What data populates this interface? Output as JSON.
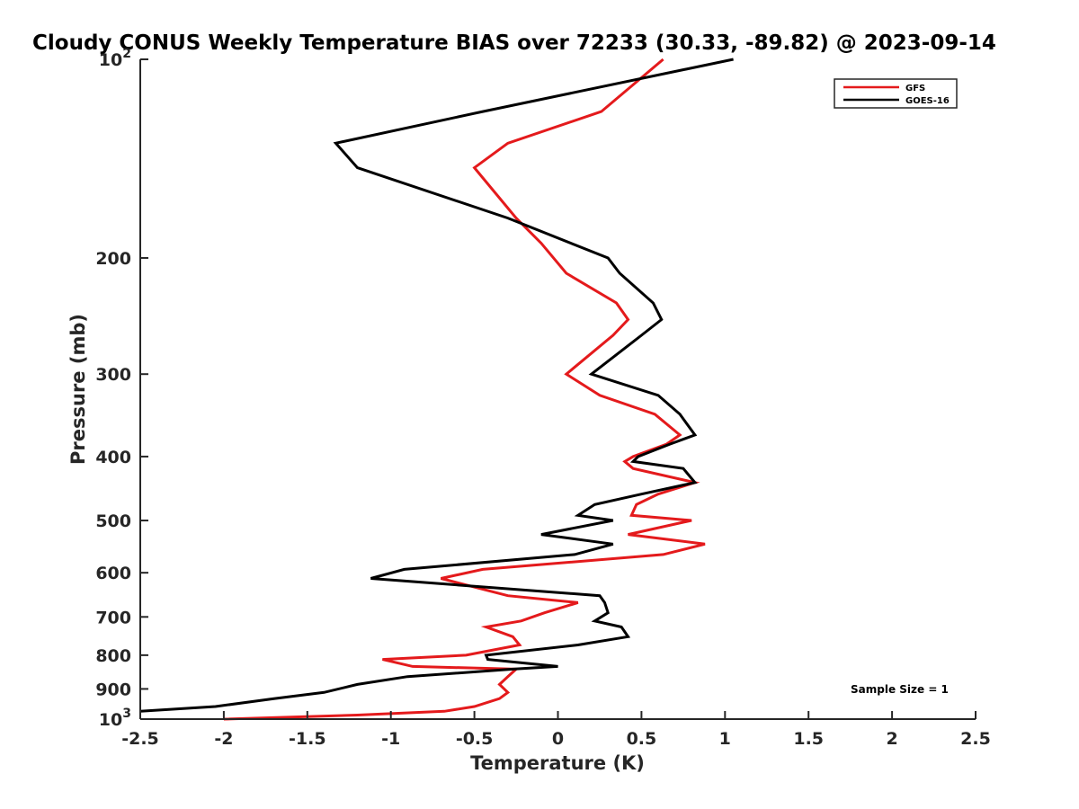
{
  "chart_data": {
    "type": "line",
    "title": "Cloudy CONUS Weekly Temperature BIAS over 72233 (30.33, -89.82) @ 2023-09-14",
    "xlabel": "Temperature (K)",
    "ylabel": "Pressure (mb)",
    "xlim": [
      -2.5,
      2.5
    ],
    "ylim": [
      100,
      1000
    ],
    "yscale": "log",
    "y_reversed": true,
    "grid": false,
    "legend_position": "top-right",
    "annotation": "Sample Size = 1",
    "x_ticks": [
      "-2.5",
      "-2",
      "-1.5",
      "-1",
      "-0.5",
      "0",
      "0.5",
      "1",
      "1.5",
      "2",
      "2.5"
    ],
    "x_tick_values": [
      -2.5,
      -2,
      -1.5,
      -1,
      -0.5,
      0,
      0.5,
      1,
      1.5,
      2,
      2.5
    ],
    "y_ticks": [
      {
        "value": 100,
        "base": "10",
        "exp": "2"
      },
      {
        "value": 200,
        "label": "200"
      },
      {
        "value": 300,
        "label": "300"
      },
      {
        "value": 400,
        "label": "400"
      },
      {
        "value": 500,
        "label": "500"
      },
      {
        "value": 600,
        "label": "600"
      },
      {
        "value": 700,
        "label": "700"
      },
      {
        "value": 800,
        "label": "800"
      },
      {
        "value": 900,
        "label": "900"
      },
      {
        "value": 1000,
        "base": "10",
        "exp": "3"
      }
    ],
    "series": [
      {
        "name": "GFS",
        "color": "#e41a1c",
        "points": [
          [
            0.63,
            100
          ],
          [
            0.26,
            120
          ],
          [
            -0.3,
            134
          ],
          [
            -0.5,
            146
          ],
          [
            -0.25,
            174
          ],
          [
            -0.1,
            190
          ],
          [
            0.05,
            211
          ],
          [
            0.35,
            234
          ],
          [
            0.42,
            248
          ],
          [
            0.33,
            262
          ],
          [
            0.05,
            300
          ],
          [
            0.25,
            323
          ],
          [
            0.58,
            345
          ],
          [
            0.73,
            371
          ],
          [
            0.65,
            383
          ],
          [
            0.45,
            400
          ],
          [
            0.4,
            407
          ],
          [
            0.45,
            417
          ],
          [
            0.82,
            438
          ],
          [
            0.6,
            456
          ],
          [
            0.47,
            473
          ],
          [
            0.44,
            491
          ],
          [
            0.8,
            500
          ],
          [
            0.42,
            525
          ],
          [
            0.88,
            543
          ],
          [
            0.63,
            563
          ],
          [
            -0.45,
            593
          ],
          [
            -0.7,
            612
          ],
          [
            -0.3,
            650
          ],
          [
            0.12,
            666
          ],
          [
            -0.08,
            690
          ],
          [
            -0.22,
            710
          ],
          [
            -0.43,
            725
          ],
          [
            -0.27,
            750
          ],
          [
            -0.23,
            772
          ],
          [
            -0.55,
            800
          ],
          [
            -1.05,
            812
          ],
          [
            -0.87,
            832
          ],
          [
            -0.25,
            840
          ],
          [
            -0.3,
            862
          ],
          [
            -0.35,
            886
          ],
          [
            -0.3,
            911
          ],
          [
            -0.35,
            931
          ],
          [
            -0.5,
            957
          ],
          [
            -0.68,
            973
          ],
          [
            -1.2,
            986
          ],
          [
            -2,
            1000
          ]
        ]
      },
      {
        "name": "GOES-16",
        "color": "#000000",
        "points": [
          [
            1.05,
            100
          ],
          [
            -0.45,
            120
          ],
          [
            -1.33,
            134
          ],
          [
            -1.2,
            146
          ],
          [
            -0.3,
            174
          ],
          [
            0.3,
            200
          ],
          [
            0.37,
            211
          ],
          [
            0.57,
            234
          ],
          [
            0.62,
            248
          ],
          [
            0.5,
            262
          ],
          [
            0.2,
            300
          ],
          [
            0.6,
            323
          ],
          [
            0.73,
            345
          ],
          [
            0.82,
            371
          ],
          [
            0.67,
            383
          ],
          [
            0.48,
            400
          ],
          [
            0.45,
            407
          ],
          [
            0.75,
            417
          ],
          [
            0.82,
            438
          ],
          [
            0.5,
            456
          ],
          [
            0.22,
            473
          ],
          [
            0.12,
            491
          ],
          [
            0.33,
            500
          ],
          [
            -0.1,
            525
          ],
          [
            0.33,
            543
          ],
          [
            0.1,
            563
          ],
          [
            -0.92,
            593
          ],
          [
            -1.12,
            612
          ],
          [
            0.25,
            650
          ],
          [
            0.28,
            666
          ],
          [
            0.3,
            690
          ],
          [
            0.22,
            710
          ],
          [
            0.38,
            725
          ],
          [
            0.42,
            750
          ],
          [
            0.12,
            772
          ],
          [
            -0.43,
            800
          ],
          [
            -0.42,
            812
          ],
          [
            0.0,
            832
          ],
          [
            -0.27,
            840
          ],
          [
            -0.9,
            862
          ],
          [
            -1.2,
            886
          ],
          [
            -1.4,
            911
          ],
          [
            -1.7,
            931
          ],
          [
            -2.05,
            957
          ],
          [
            -2.5,
            973
          ]
        ]
      }
    ]
  }
}
